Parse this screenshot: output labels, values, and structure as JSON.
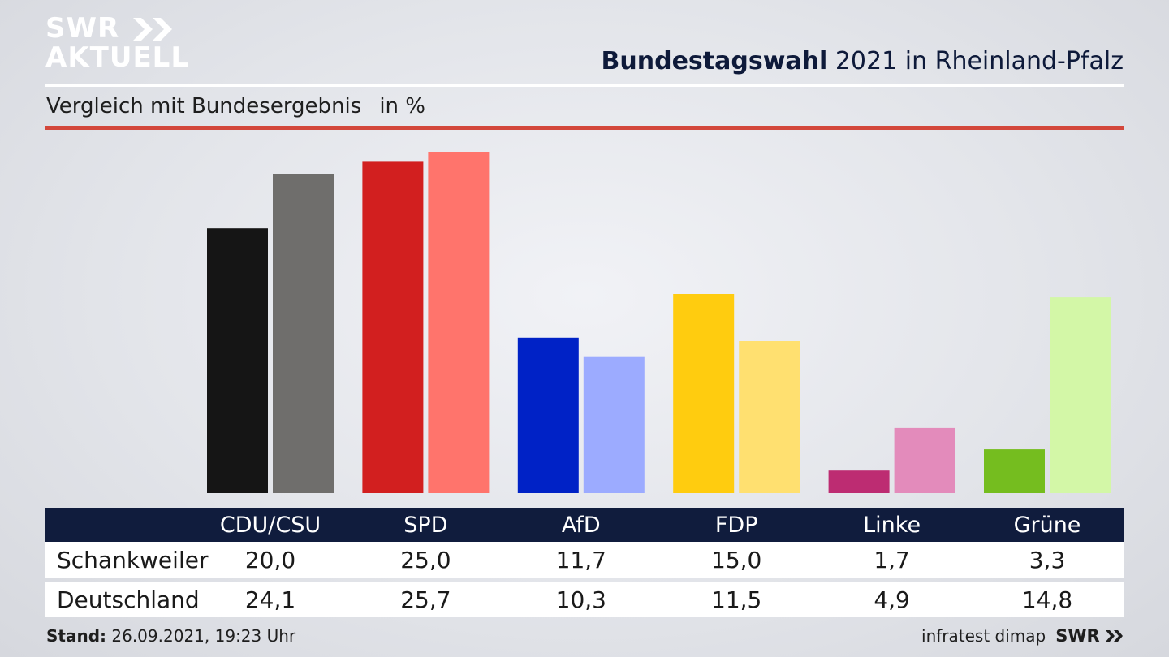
{
  "brand": {
    "logo_line1": "SWR",
    "logo_line2": "AKTUELL",
    "footer_logo": "SWR",
    "logo_color": "#ffffff"
  },
  "header": {
    "title_bold": "Bundestagswahl",
    "title_rest": "2021 in Rheinland-Pfalz",
    "subtitle": "Vergleich mit Bundesergebnis",
    "unit": "in %"
  },
  "footer": {
    "stand_label": "Stand:",
    "stand_value": "26.09.2021, 19:23 Uhr",
    "source": "infratest dimap"
  },
  "chart_data": {
    "type": "bar",
    "title": "Bundestagswahl 2021 in Rheinland-Pfalz",
    "subtitle": "Vergleich mit Bundesergebnis",
    "unit": "in %",
    "categories": [
      "CDU/CSU",
      "SPD",
      "AfD",
      "FDP",
      "Linke",
      "Grüne"
    ],
    "series": [
      {
        "name": "Schankweiler",
        "values": [
          "20,0",
          "25,0",
          "11,7",
          "15,0",
          "1,7",
          "3,3"
        ],
        "numeric": [
          20.0,
          25.0,
          11.7,
          15.0,
          1.7,
          3.3
        ],
        "colors": [
          "#151515",
          "#d21f1f",
          "#0022c6",
          "#ffcc0f",
          "#bd2c72",
          "#75bd1f"
        ]
      },
      {
        "name": "Deutschland",
        "values": [
          "24,1",
          "25,7",
          "10,3",
          "11,5",
          "4,9",
          "14,8"
        ],
        "numeric": [
          24.1,
          25.7,
          10.3,
          11.5,
          4.9,
          14.8
        ],
        "colors": [
          "#6f6e6c",
          "#ff746c",
          "#9cabff",
          "#ffe070",
          "#e38bbb",
          "#d3f7a7"
        ]
      }
    ],
    "ylim": [
      0,
      25.7
    ],
    "grid": false,
    "legend": "table-below"
  }
}
